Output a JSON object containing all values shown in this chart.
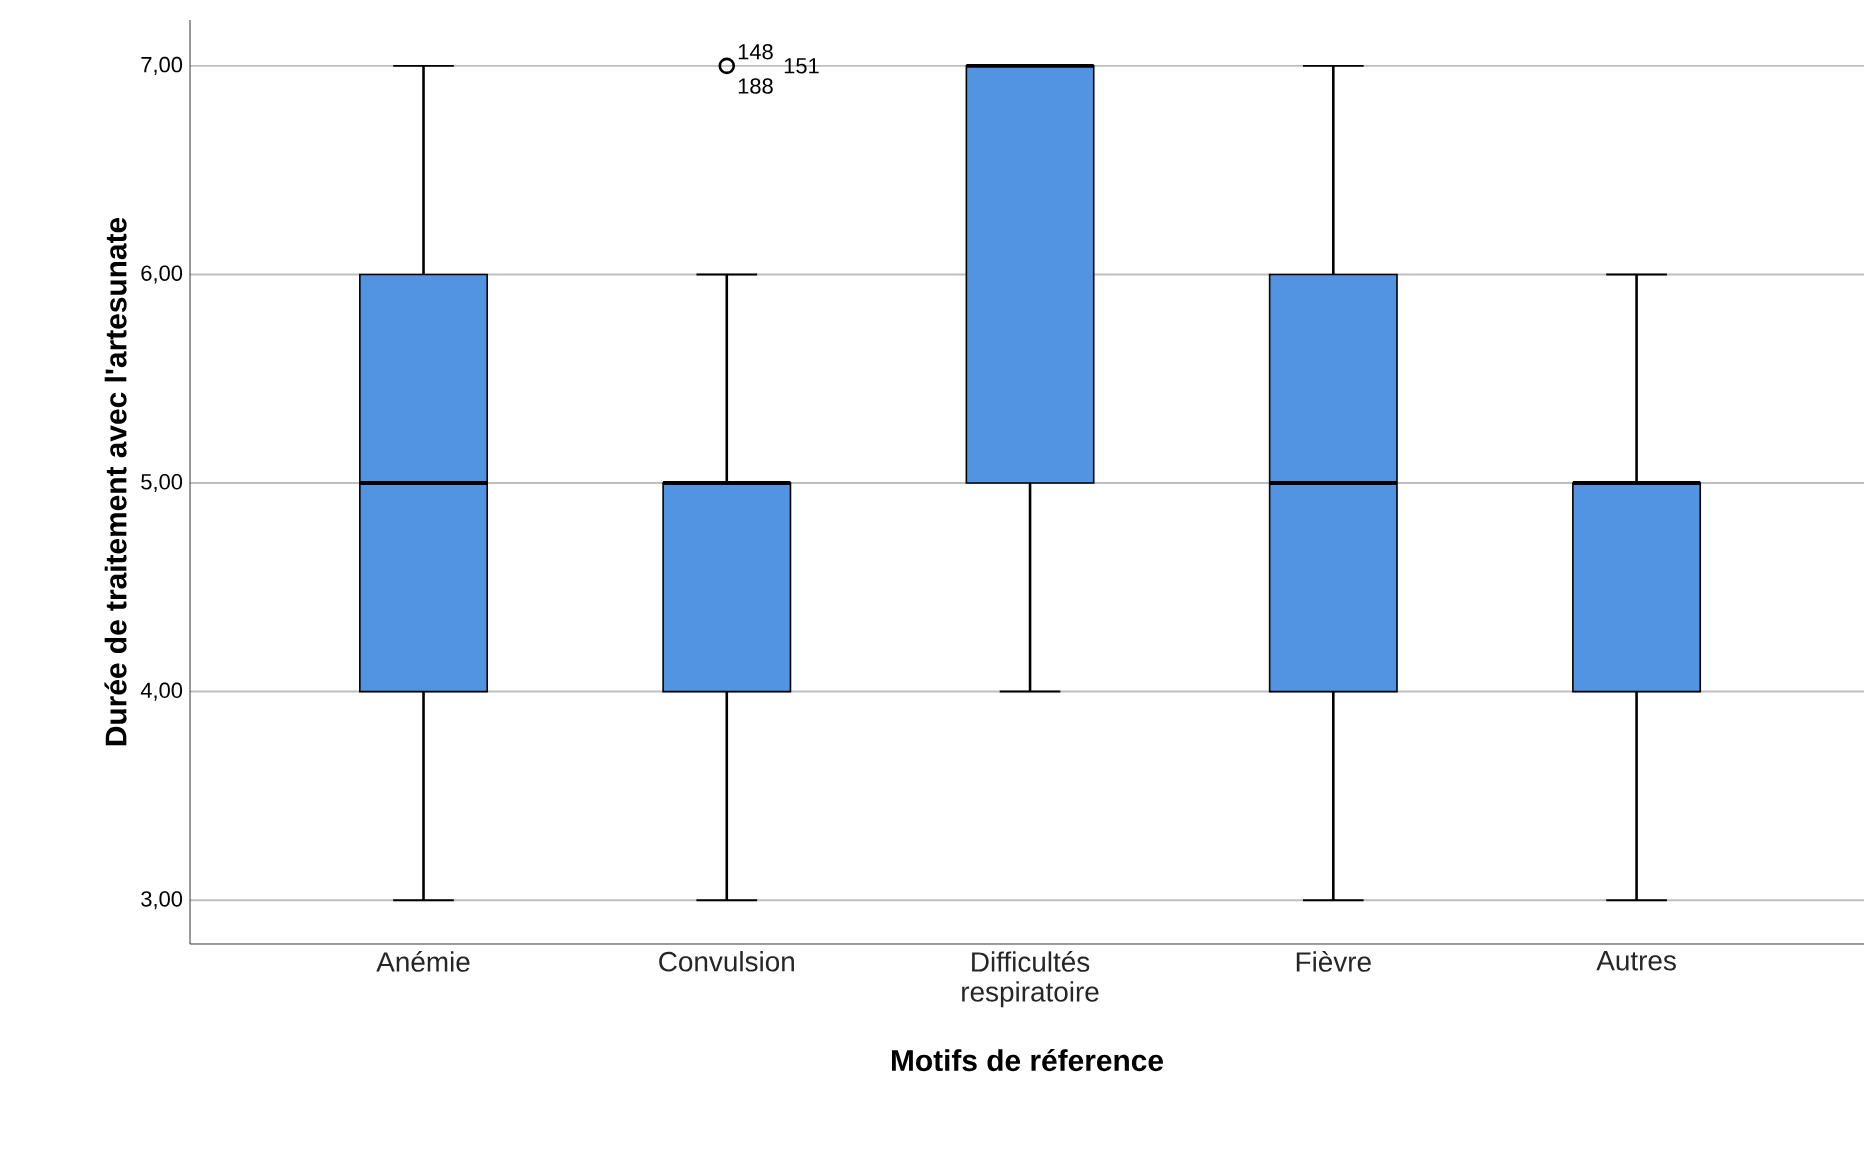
{
  "chart_data": {
    "type": "box",
    "xlabel": "Motifs de réference",
    "ylabel": "Durée de traitement avec l'artesunate",
    "categories": [
      "Anémie",
      "Convulsion",
      "Difficultés respiratoire",
      "Fièvre",
      "Autres"
    ],
    "boxes": [
      {
        "low": 3,
        "q1": 4,
        "median": 5,
        "q3": 6,
        "high": 7
      },
      {
        "low": 3,
        "q1": 4,
        "median": 5,
        "q3": 5,
        "high": 6,
        "outliers": [
          7
        ]
      },
      {
        "low": 4,
        "q1": 5,
        "median": 7,
        "q3": 7,
        "high": 7
      },
      {
        "low": 3,
        "q1": 4,
        "median": 5,
        "q3": 6,
        "high": 7
      },
      {
        "low": 3,
        "q1": 4,
        "median": 5,
        "q3": 5,
        "high": 6
      }
    ],
    "color": "#5294e2",
    "ylim": [
      2.79,
      7.22
    ],
    "yticks": [
      {
        "value": 3,
        "label": "3,00"
      },
      {
        "value": 4,
        "label": "4,00"
      },
      {
        "value": 5,
        "label": "5,00"
      },
      {
        "value": 6,
        "label": "6,00"
      },
      {
        "value": 7,
        "label": "7,00"
      }
    ],
    "grid": "y",
    "annotations": [
      "148",
      "151",
      "188"
    ]
  }
}
